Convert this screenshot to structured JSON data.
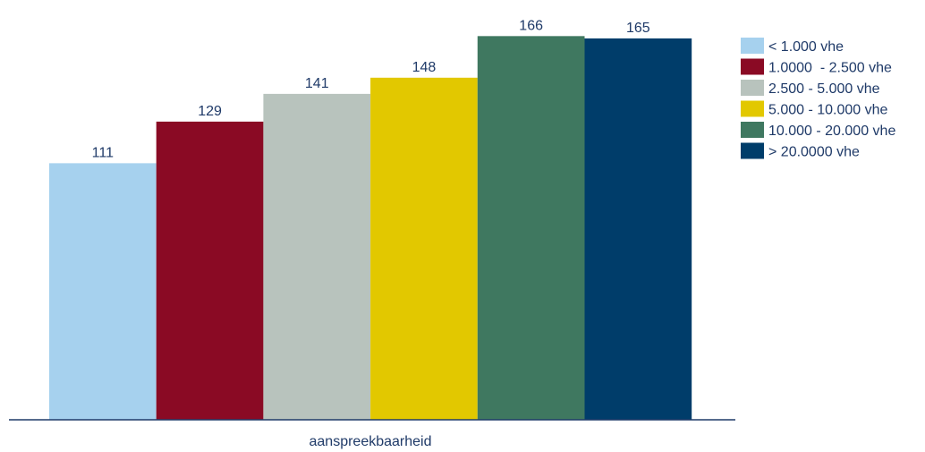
{
  "chart_data": {
    "type": "bar",
    "categories": [
      "aanspreekbaarheid"
    ],
    "series": [
      {
        "name": "< 1.000 vhe",
        "values": [
          111
        ],
        "color": "#a6d1ee"
      },
      {
        "name": "1.0000  - 2.500 vhe",
        "values": [
          129
        ],
        "color": "#8a0a24"
      },
      {
        "name": "2.500 - 5.000 vhe",
        "values": [
          141
        ],
        "color": "#b8c3bd"
      },
      {
        "name": "5.000 - 10.000 vhe",
        "values": [
          148
        ],
        "color": "#e2c800"
      },
      {
        "name": "10.000 - 20.000 vhe",
        "values": [
          166
        ],
        "color": "#3f7860"
      },
      {
        "name": "> 20.0000 vhe",
        "values": [
          165
        ],
        "color": "#003d6a"
      }
    ],
    "title": "",
    "xlabel": "",
    "ylabel": "",
    "ylim": [
      0,
      170
    ],
    "grid": false,
    "legend": "right"
  }
}
